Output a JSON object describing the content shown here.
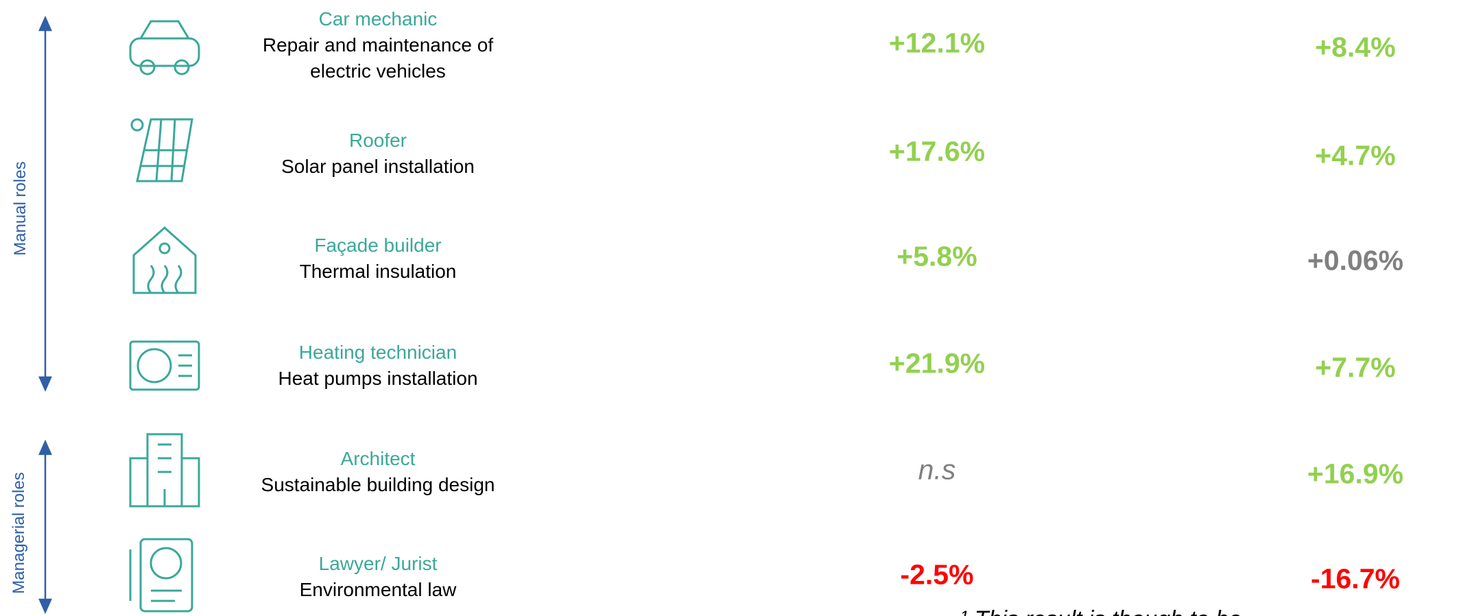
{
  "side_labels": [
    "Manual roles",
    "Managerial roles"
  ],
  "rows": [
    {
      "role": "Car mechanic",
      "description": [
        "Repair and maintenance of",
        "electric vehicles"
      ],
      "values": [
        "+12.1%",
        "+8.4%"
      ],
      "colors": [
        "#92d050",
        "#92d050"
      ]
    },
    {
      "role": "Roofer",
      "description": [
        "Solar panel installation"
      ],
      "values": [
        "+17.6%",
        "+4.7%"
      ],
      "colors": [
        "#92d050",
        "#92d050"
      ]
    },
    {
      "role": "Façade builder",
      "description": [
        "Thermal insulation"
      ],
      "values": [
        "+5.8%",
        "+0.06%"
      ],
      "colors": [
        "#92d050",
        "#808080"
      ]
    },
    {
      "role": "Heating technician",
      "description": [
        "Heat pumps installation"
      ],
      "values": [
        "+21.9%",
        "+7.7%"
      ],
      "colors": [
        "#92d050",
        "#92d050"
      ]
    },
    {
      "role": "Architect",
      "description": [
        "Sustainable building design"
      ],
      "values": [
        "n.s",
        "+16.9%"
      ],
      "colors": [
        "#808080",
        "#92d050"
      ]
    },
    {
      "role": "Lawyer/ Jurist",
      "description": [
        "Environmental law"
      ],
      "values": [
        "-2.5%",
        "-16.7%"
      ],
      "colors": [
        "#ff0000",
        "#ff0000"
      ]
    }
  ],
  "footnote": "¹ This result is though to be"
}
